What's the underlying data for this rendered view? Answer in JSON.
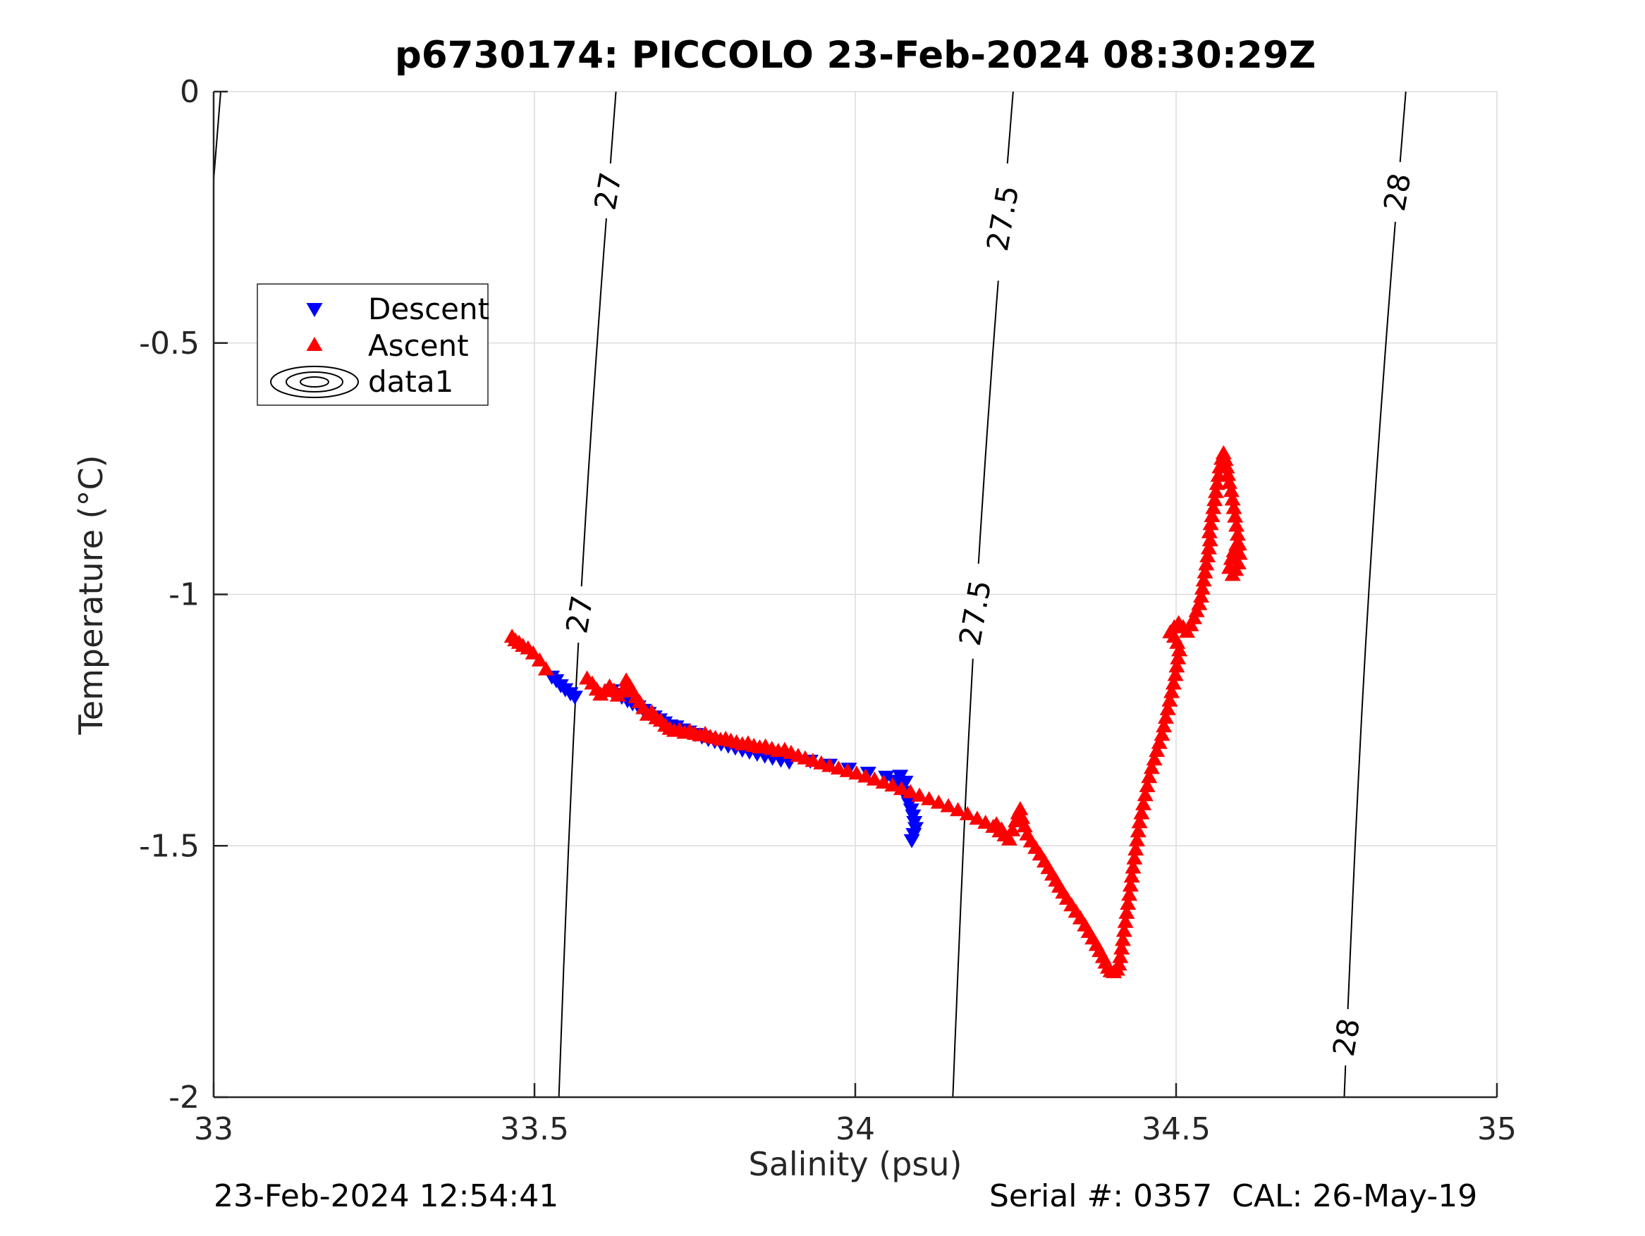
{
  "title": "p6730174: PICCOLO 23-Feb-2024 08:30:29Z",
  "annotations": {
    "bottom_left": "23-Feb-2024 12:54:41",
    "bottom_right": "Serial #: 0357  CAL: 26-May-19"
  },
  "legend": {
    "entries": [
      {
        "label": "Descent",
        "marker": "triangle-down-icon",
        "color": "#0000FF"
      },
      {
        "label": "Ascent",
        "marker": "triangle-up-icon",
        "color": "#FF0000"
      },
      {
        "label": "data1",
        "marker": "contour-ellipses-icon",
        "color": "#000000"
      }
    ],
    "position": "northwest"
  },
  "colors": {
    "descent": "#0000FF",
    "ascent": "#FF0000",
    "axis": "#262626",
    "grid": "#dcdcdc",
    "contour": "#000000"
  },
  "chart_data": {
    "type": "scatter",
    "title": "p6730174: PICCOLO 23-Feb-2024 08:30:29Z",
    "xlabel": "Salinity (psu)",
    "ylabel": "Temperature (°C)",
    "xlim": [
      33,
      35
    ],
    "ylim": [
      -2,
      0
    ],
    "xticks": [
      33,
      33.5,
      34,
      34.5,
      35
    ],
    "xticklabels": [
      "33",
      "33.5",
      "34",
      "34.5",
      "35"
    ],
    "yticks": [
      0,
      -0.5,
      -1,
      -1.5,
      -2
    ],
    "yticklabels": [
      "0",
      "-0.5",
      "-1",
      "-1.5",
      "-2"
    ],
    "grid": true,
    "legend_position": "northwest",
    "contours": {
      "comment": "sigma-theta isopycnals, nearly vertical lines; s_top = salinity at T=0, s_bottom = salinity at T=-2; gaps are T-ranges left blank for inline labels",
      "levels": [
        {
          "level": "26.5",
          "label": "",
          "segment": [
            [
              33.011,
              0
            ],
            [
              33.0,
              -0.175
            ]
          ],
          "gaps": [],
          "labels_t": []
        },
        {
          "level": "27",
          "s_top": 33.627,
          "s_bottom": 33.538,
          "gaps": [
            [
              -0.143,
              -0.252
            ],
            [
              -0.984,
              -1.096
            ]
          ],
          "labels_t": [
            -0.198,
            -1.04
          ]
        },
        {
          "level": "27.5",
          "s_top": 34.246,
          "s_bottom": 34.152,
          "gaps": [
            [
              -0.143,
              -0.376
            ],
            [
              -0.939,
              -1.128
            ]
          ],
          "labels_t": [
            -0.252,
            -1.037
          ]
        },
        {
          "level": "28",
          "s_top": 34.858,
          "s_bottom": 34.762,
          "gaps": [
            [
              -0.14,
              -0.259
            ],
            [
              -1.825,
              -1.937
            ]
          ],
          "labels_t": [
            -0.2,
            -1.881
          ]
        }
      ]
    },
    "series": [
      {
        "name": "Descent",
        "marker": "triangle-down",
        "color": "#0000FF",
        "points": [
          [
            33.527,
            -1.163
          ],
          [
            33.534,
            -1.17
          ],
          [
            33.541,
            -1.18
          ],
          [
            33.548,
            -1.188
          ],
          [
            33.556,
            -1.196
          ],
          [
            33.563,
            -1.203
          ],
          [
            33.62,
            -1.19
          ],
          [
            33.628,
            -1.197
          ],
          [
            33.636,
            -1.203
          ],
          [
            33.645,
            -1.21
          ],
          [
            33.653,
            -1.216
          ],
          [
            33.662,
            -1.222
          ],
          [
            33.67,
            -1.229
          ],
          [
            33.678,
            -1.235
          ],
          [
            33.687,
            -1.242
          ],
          [
            33.695,
            -1.248
          ],
          [
            33.703,
            -1.254
          ],
          [
            33.712,
            -1.26
          ],
          [
            33.721,
            -1.262
          ],
          [
            33.731,
            -1.268
          ],
          [
            33.741,
            -1.272
          ],
          [
            33.751,
            -1.277
          ],
          [
            33.761,
            -1.282
          ],
          [
            33.771,
            -1.287
          ],
          [
            33.781,
            -1.291
          ],
          [
            33.791,
            -1.296
          ],
          [
            33.802,
            -1.3
          ],
          [
            33.813,
            -1.304
          ],
          [
            33.824,
            -1.308
          ],
          [
            33.835,
            -1.312
          ],
          [
            33.847,
            -1.316
          ],
          [
            33.859,
            -1.32
          ],
          [
            33.871,
            -1.324
          ],
          [
            33.884,
            -1.328
          ],
          [
            33.897,
            -1.332
          ],
          [
            33.93,
            -1.33
          ],
          [
            33.96,
            -1.338
          ],
          [
            33.99,
            -1.346
          ],
          [
            34.02,
            -1.354
          ],
          [
            34.048,
            -1.362
          ],
          [
            34.06,
            -1.37
          ],
          [
            34.07,
            -1.36
          ],
          [
            34.078,
            -1.372
          ],
          [
            34.068,
            -1.382
          ],
          [
            34.075,
            -1.392
          ],
          [
            34.08,
            -1.403
          ],
          [
            34.084,
            -1.415
          ],
          [
            34.087,
            -1.427
          ],
          [
            34.09,
            -1.439
          ],
          [
            34.092,
            -1.452
          ],
          [
            34.094,
            -1.464
          ],
          [
            34.091,
            -1.476
          ],
          [
            34.088,
            -1.488
          ]
        ]
      },
      {
        "name": "Ascent",
        "marker": "triangle-up",
        "color": "#FF0000",
        "points": [
          [
            33.465,
            -1.085
          ],
          [
            33.47,
            -1.092
          ],
          [
            33.476,
            -1.097
          ],
          [
            33.482,
            -1.103
          ],
          [
            33.49,
            -1.108
          ],
          [
            33.498,
            -1.118
          ],
          [
            33.508,
            -1.132
          ],
          [
            33.518,
            -1.15
          ],
          [
            33.582,
            -1.168
          ],
          [
            33.59,
            -1.178
          ],
          [
            33.597,
            -1.19
          ],
          [
            33.603,
            -1.2
          ],
          [
            33.61,
            -1.193
          ],
          [
            33.617,
            -1.184
          ],
          [
            33.624,
            -1.192
          ],
          [
            33.63,
            -1.202
          ],
          [
            33.637,
            -1.194
          ],
          [
            33.643,
            -1.172
          ],
          [
            33.648,
            -1.182
          ],
          [
            33.653,
            -1.193
          ],
          [
            33.658,
            -1.205
          ],
          [
            33.664,
            -1.215
          ],
          [
            33.67,
            -1.227
          ],
          [
            33.676,
            -1.24
          ],
          [
            33.683,
            -1.235
          ],
          [
            33.69,
            -1.247
          ],
          [
            33.697,
            -1.252
          ],
          [
            33.704,
            -1.262
          ],
          [
            33.711,
            -1.268
          ],
          [
            33.718,
            -1.272
          ],
          [
            33.726,
            -1.27
          ],
          [
            33.734,
            -1.276
          ],
          [
            33.742,
            -1.272
          ],
          [
            33.75,
            -1.278
          ],
          [
            33.758,
            -1.281
          ],
          [
            33.766,
            -1.278
          ],
          [
            33.774,
            -1.284
          ],
          [
            33.782,
            -1.286
          ],
          [
            33.79,
            -1.29
          ],
          [
            33.798,
            -1.288
          ],
          [
            33.806,
            -1.292
          ],
          [
            33.815,
            -1.295
          ],
          [
            33.824,
            -1.299
          ],
          [
            33.833,
            -1.297
          ],
          [
            33.842,
            -1.302
          ],
          [
            33.851,
            -1.305
          ],
          [
            33.86,
            -1.303
          ],
          [
            33.87,
            -1.308
          ],
          [
            33.88,
            -1.312
          ],
          [
            33.89,
            -1.31
          ],
          [
            33.9,
            -1.316
          ],
          [
            33.911,
            -1.322
          ],
          [
            33.922,
            -1.327
          ],
          [
            33.934,
            -1.332
          ],
          [
            33.947,
            -1.337
          ],
          [
            33.96,
            -1.342
          ],
          [
            33.974,
            -1.347
          ],
          [
            33.988,
            -1.352
          ],
          [
            34.002,
            -1.357
          ],
          [
            34.016,
            -1.363
          ],
          [
            34.03,
            -1.369
          ],
          [
            34.044,
            -1.375
          ],
          [
            34.058,
            -1.381
          ],
          [
            34.072,
            -1.388
          ],
          [
            34.086,
            -1.394
          ],
          [
            34.1,
            -1.401
          ],
          [
            34.115,
            -1.408
          ],
          [
            34.13,
            -1.415
          ],
          [
            34.145,
            -1.422
          ],
          [
            34.16,
            -1.43
          ],
          [
            34.175,
            -1.438
          ],
          [
            34.19,
            -1.447
          ],
          [
            34.203,
            -1.455
          ],
          [
            34.215,
            -1.463
          ],
          [
            34.225,
            -1.472
          ],
          [
            34.233,
            -1.48
          ],
          [
            34.24,
            -1.488
          ],
          [
            34.228,
            -1.468
          ],
          [
            34.22,
            -1.458
          ],
          [
            34.245,
            -1.47
          ],
          [
            34.25,
            -1.452
          ],
          [
            34.254,
            -1.436
          ],
          [
            34.257,
            -1.428
          ],
          [
            34.26,
            -1.445
          ],
          [
            34.264,
            -1.462
          ],
          [
            34.268,
            -1.478
          ],
          [
            34.274,
            -1.492
          ],
          [
            34.281,
            -1.505
          ],
          [
            34.288,
            -1.518
          ],
          [
            34.295,
            -1.532
          ],
          [
            34.301,
            -1.545
          ],
          [
            34.307,
            -1.558
          ],
          [
            34.313,
            -1.57
          ],
          [
            34.318,
            -1.582
          ],
          [
            34.324,
            -1.594
          ],
          [
            34.33,
            -1.606
          ],
          [
            34.337,
            -1.619
          ],
          [
            34.344,
            -1.632
          ],
          [
            34.351,
            -1.645
          ],
          [
            34.358,
            -1.659
          ],
          [
            34.364,
            -1.672
          ],
          [
            34.37,
            -1.685
          ],
          [
            34.376,
            -1.698
          ],
          [
            34.381,
            -1.71
          ],
          [
            34.386,
            -1.722
          ],
          [
            34.39,
            -1.733
          ],
          [
            34.394,
            -1.743
          ],
          [
            34.398,
            -1.75
          ],
          [
            34.403,
            -1.752
          ],
          [
            34.408,
            -1.747
          ],
          [
            34.411,
            -1.737
          ],
          [
            34.413,
            -1.722
          ],
          [
            34.415,
            -1.705
          ],
          [
            34.417,
            -1.688
          ],
          [
            34.419,
            -1.67
          ],
          [
            34.421,
            -1.652
          ],
          [
            34.423,
            -1.634
          ],
          [
            34.425,
            -1.616
          ],
          [
            34.427,
            -1.598
          ],
          [
            34.429,
            -1.58
          ],
          [
            34.431,
            -1.562
          ],
          [
            34.433,
            -1.544
          ],
          [
            34.435,
            -1.526
          ],
          [
            34.437,
            -1.508
          ],
          [
            34.439,
            -1.49
          ],
          [
            34.441,
            -1.472
          ],
          [
            34.443,
            -1.454
          ],
          [
            34.446,
            -1.436
          ],
          [
            34.449,
            -1.418
          ],
          [
            34.452,
            -1.4
          ],
          [
            34.455,
            -1.382
          ],
          [
            34.458,
            -1.364
          ],
          [
            34.462,
            -1.346
          ],
          [
            34.466,
            -1.329
          ],
          [
            34.47,
            -1.312
          ],
          [
            34.474,
            -1.296
          ],
          [
            34.478,
            -1.28
          ],
          [
            34.481,
            -1.263
          ],
          [
            34.484,
            -1.246
          ],
          [
            34.487,
            -1.229
          ],
          [
            34.49,
            -1.212
          ],
          [
            34.493,
            -1.195
          ],
          [
            34.496,
            -1.178
          ],
          [
            34.499,
            -1.161
          ],
          [
            34.501,
            -1.144
          ],
          [
            34.503,
            -1.128
          ],
          [
            34.505,
            -1.112
          ],
          [
            34.502,
            -1.097
          ],
          [
            34.497,
            -1.085
          ],
          [
            34.491,
            -1.076
          ],
          [
            34.497,
            -1.066
          ],
          [
            34.504,
            -1.058
          ],
          [
            34.511,
            -1.066
          ],
          [
            34.517,
            -1.075
          ],
          [
            34.523,
            -1.062
          ],
          [
            34.528,
            -1.048
          ],
          [
            34.532,
            -1.034
          ],
          [
            34.536,
            -1.02
          ],
          [
            34.539,
            -1.005
          ],
          [
            34.541,
            -0.989
          ],
          [
            34.543,
            -0.973
          ],
          [
            34.545,
            -0.957
          ],
          [
            34.547,
            -0.941
          ],
          [
            34.549,
            -0.925
          ],
          [
            34.551,
            -0.909
          ],
          [
            34.553,
            -0.893
          ],
          [
            34.552,
            -0.877
          ],
          [
            34.554,
            -0.861
          ],
          [
            34.556,
            -0.845
          ],
          [
            34.558,
            -0.829
          ],
          [
            34.56,
            -0.813
          ],
          [
            34.562,
            -0.797
          ],
          [
            34.564,
            -0.781
          ],
          [
            34.566,
            -0.765
          ],
          [
            34.568,
            -0.748
          ],
          [
            34.571,
            -0.731
          ],
          [
            34.574,
            -0.72
          ],
          [
            34.577,
            -0.733
          ],
          [
            34.579,
            -0.748
          ],
          [
            34.581,
            -0.763
          ],
          [
            34.583,
            -0.779
          ],
          [
            34.586,
            -0.795
          ],
          [
            34.588,
            -0.812
          ],
          [
            34.59,
            -0.829
          ],
          [
            34.592,
            -0.846
          ],
          [
            34.594,
            -0.864
          ],
          [
            34.596,
            -0.882
          ],
          [
            34.598,
            -0.901
          ],
          [
            34.599,
            -0.92
          ],
          [
            34.597,
            -0.939
          ],
          [
            34.593,
            -0.952
          ],
          [
            34.588,
            -0.962
          ],
          [
            34.583,
            -0.948
          ],
          [
            34.586,
            -0.93
          ],
          [
            34.59,
            -0.915
          ],
          [
            34.594,
            -0.902
          ]
        ]
      }
    ]
  }
}
